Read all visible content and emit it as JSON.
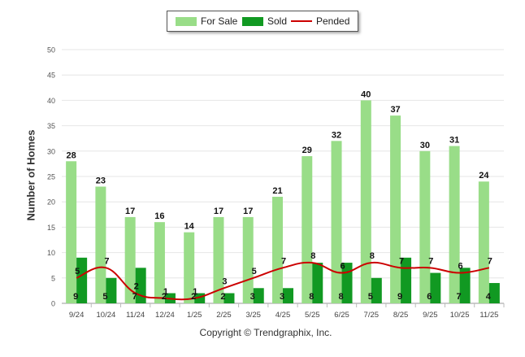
{
  "chart_data": {
    "type": "bar",
    "categories": [
      "9/24",
      "10/24",
      "11/24",
      "12/24",
      "1/25",
      "2/25",
      "3/25",
      "4/25",
      "5/25",
      "6/25",
      "7/25",
      "8/25",
      "9/25",
      "10/25",
      "11/25"
    ],
    "series": [
      {
        "name": "For Sale",
        "type": "bar",
        "color": "#99dd88",
        "values": [
          28,
          23,
          17,
          16,
          14,
          17,
          17,
          21,
          29,
          32,
          40,
          37,
          30,
          31,
          24
        ]
      },
      {
        "name": "Sold",
        "type": "bar",
        "color": "#119922",
        "values": [
          9,
          5,
          7,
          2,
          2,
          2,
          3,
          3,
          8,
          8,
          5,
          9,
          6,
          7,
          4
        ]
      },
      {
        "name": "Pended",
        "type": "line",
        "color": "#cc0000",
        "values": [
          5,
          7,
          2,
          1,
          1,
          3,
          5,
          7,
          8,
          6,
          8,
          7,
          7,
          6,
          7
        ]
      }
    ],
    "ylabel": "Number of Homes",
    "ylim": [
      0,
      50
    ],
    "yticks": [
      0,
      5,
      10,
      15,
      20,
      25,
      30,
      35,
      40,
      45,
      50
    ],
    "grid": true,
    "legend_position": "top-center"
  },
  "footer": {
    "copyright": "Copyright © Trendgraphix, Inc."
  }
}
